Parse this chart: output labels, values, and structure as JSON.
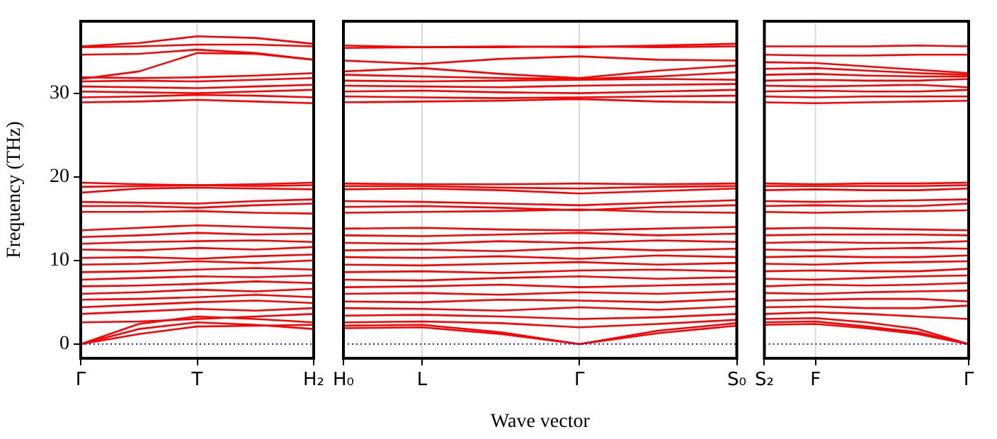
{
  "chart_data": [
    {
      "type": "line",
      "ylabel": "Frequency (THz)",
      "color": "#ff0000",
      "marker": "none",
      "line_style": "solid",
      "tick_labels": "xy",
      "categories": [
        "Γ",
        null,
        "T",
        null,
        "H₂"
      ],
      "ylim": [
        -1.7,
        38.6
      ],
      "yticks": [
        0,
        10,
        20,
        30
      ],
      "ref_lines": [
        {
          "axis": "y",
          "value": 0,
          "color": "#0000ff",
          "line_style": "dotted"
        },
        {
          "axis": "x",
          "value": "T",
          "color": "#d9d9d9",
          "line_style": "solid"
        }
      ],
      "series": [
        {
          "values": [
            0,
            1.2,
            2.1,
            2.2,
            2.3
          ]
        },
        {
          "values": [
            0,
            1.8,
            2.6,
            2.3,
            1.8
          ]
        },
        {
          "values": [
            0,
            2.4,
            3.3,
            3.0,
            2.6
          ]
        },
        {
          "values": [
            2.6,
            2.7,
            3.0,
            3.3,
            3.6
          ]
        },
        {
          "values": [
            3.6,
            3.9,
            4.2,
            4.0,
            4.3
          ]
        },
        {
          "values": [
            4.4,
            4.7,
            5.0,
            5.2,
            4.9
          ]
        },
        {
          "values": [
            5.3,
            5.4,
            5.6,
            5.9,
            5.6
          ]
        },
        {
          "values": [
            6.0,
            6.2,
            6.5,
            6.3,
            6.6
          ]
        },
        {
          "values": [
            6.9,
            7.0,
            7.2,
            7.5,
            7.3
          ]
        },
        {
          "values": [
            7.7,
            7.9,
            8.1,
            8.0,
            8.2
          ]
        },
        {
          "values": [
            8.6,
            8.7,
            8.9,
            9.1,
            8.9
          ]
        },
        {
          "values": [
            9.5,
            9.6,
            9.9,
            9.7,
            10.0
          ]
        },
        {
          "values": [
            10.3,
            10.4,
            10.2,
            10.5,
            10.7
          ]
        },
        {
          "values": [
            11.3,
            11.2,
            11.5,
            11.3,
            11.6
          ]
        },
        {
          "values": [
            12.0,
            12.2,
            12.3,
            12.4,
            12.2
          ]
        },
        {
          "values": [
            12.8,
            13.0,
            13.3,
            13.1,
            13.2
          ]
        },
        {
          "values": [
            13.6,
            13.9,
            14.2,
            14.0,
            13.8
          ]
        },
        {
          "values": [
            15.8,
            15.8,
            15.9,
            15.7,
            15.6
          ]
        },
        {
          "values": [
            16.5,
            16.5,
            16.3,
            16.6,
            16.8
          ]
        },
        {
          "values": [
            17.0,
            16.9,
            16.8,
            17.1,
            17.3
          ]
        },
        {
          "values": [
            18.1,
            18.6,
            18.7,
            18.6,
            18.5
          ]
        },
        {
          "values": [
            18.8,
            18.9,
            19.0,
            18.9,
            19.0
          ]
        },
        {
          "values": [
            19.3,
            19.1,
            19.0,
            19.1,
            19.3
          ]
        },
        {
          "values": [
            28.9,
            29.0,
            29.2,
            29.0,
            28.8
          ]
        },
        {
          "values": [
            29.5,
            29.6,
            29.8,
            29.7,
            29.5
          ]
        },
        {
          "values": [
            30.2,
            30.1,
            30.0,
            30.2,
            30.4
          ]
        },
        {
          "values": [
            30.8,
            30.7,
            30.6,
            30.8,
            31.0
          ]
        },
        {
          "values": [
            31.4,
            31.5,
            31.4,
            31.6,
            31.8
          ]
        },
        {
          "values": [
            31.9,
            31.8,
            31.9,
            32.1,
            32.4
          ]
        },
        {
          "values": [
            31.7,
            32.6,
            34.8,
            34.7,
            34.0
          ]
        },
        {
          "values": [
            34.6,
            34.7,
            35.2,
            34.8,
            34.0
          ]
        },
        {
          "values": [
            35.5,
            35.6,
            35.8,
            35.8,
            35.6
          ]
        },
        {
          "values": [
            35.6,
            36.0,
            36.8,
            36.6,
            35.9
          ]
        }
      ]
    },
    {
      "type": "line",
      "xlabel": "Wave vector",
      "color": "#ff0000",
      "marker": "none",
      "line_style": "solid",
      "grid": "x",
      "tick_labels": "x",
      "categories": [
        "H₀",
        "L",
        null,
        "Γ",
        null,
        "S₀"
      ],
      "ylim": [
        -1.7,
        38.6
      ],
      "yticks": [
        0,
        10,
        20,
        30
      ],
      "ref_lines": [
        {
          "axis": "y",
          "value": 0,
          "color": "#0000ff",
          "line_style": "dotted"
        }
      ],
      "series": [
        {
          "values": [
            1.9,
            2.0,
            1.2,
            0,
            1.3,
            2.2
          ]
        },
        {
          "values": [
            2.2,
            2.3,
            1.4,
            0,
            1.6,
            2.5
          ]
        },
        {
          "values": [
            2.6,
            2.7,
            2.5,
            2.0,
            2.4,
            2.9
          ]
        },
        {
          "values": [
            3.4,
            3.5,
            3.3,
            3.0,
            3.2,
            3.6
          ]
        },
        {
          "values": [
            4.3,
            4.2,
            4.0,
            4.4,
            4.1,
            4.5
          ]
        },
        {
          "values": [
            5.1,
            5.0,
            5.3,
            5.2,
            5.0,
            5.4
          ]
        },
        {
          "values": [
            6.0,
            6.1,
            5.9,
            6.2,
            6.0,
            6.3
          ]
        },
        {
          "values": [
            6.8,
            6.9,
            7.1,
            6.8,
            7.0,
            7.2
          ]
        },
        {
          "values": [
            7.7,
            7.6,
            7.9,
            8.1,
            7.8,
            8.0
          ]
        },
        {
          "values": [
            8.6,
            8.7,
            8.5,
            8.8,
            8.9,
            8.7
          ]
        },
        {
          "values": [
            9.5,
            9.4,
            9.6,
            9.8,
            9.5,
            9.7
          ]
        },
        {
          "values": [
            10.4,
            10.3,
            10.5,
            10.2,
            10.6,
            10.4
          ]
        },
        {
          "values": [
            11.2,
            11.3,
            11.1,
            11.5,
            11.2,
            11.4
          ]
        },
        {
          "values": [
            12.1,
            12.0,
            12.3,
            12.1,
            12.4,
            12.2
          ]
        },
        {
          "values": [
            13.0,
            12.9,
            13.1,
            13.3,
            13.0,
            13.2
          ]
        },
        {
          "values": [
            13.8,
            13.9,
            13.7,
            13.6,
            13.8,
            14.0
          ]
        },
        {
          "values": [
            15.7,
            15.8,
            15.9,
            16.1,
            15.8,
            15.7
          ]
        },
        {
          "values": [
            16.4,
            16.5,
            16.3,
            16.0,
            16.4,
            16.6
          ]
        },
        {
          "values": [
            17.1,
            17.0,
            16.8,
            16.6,
            16.9,
            17.2
          ]
        },
        {
          "values": [
            18.5,
            18.6,
            18.4,
            18.0,
            18.3,
            18.6
          ]
        },
        {
          "values": [
            18.9,
            18.9,
            18.7,
            18.6,
            18.8,
            18.9
          ]
        },
        {
          "values": [
            19.2,
            19.1,
            19.1,
            19.2,
            19.1,
            19.2
          ]
        },
        {
          "values": [
            28.9,
            29.0,
            29.1,
            29.3,
            29.0,
            28.9
          ]
        },
        {
          "values": [
            29.6,
            29.5,
            29.4,
            29.5,
            29.6,
            29.7
          ]
        },
        {
          "values": [
            30.2,
            30.3,
            30.1,
            30.0,
            30.2,
            30.4
          ]
        },
        {
          "values": [
            30.9,
            30.8,
            30.7,
            30.9,
            31.0,
            31.1
          ]
        },
        {
          "values": [
            31.5,
            31.4,
            31.5,
            31.6,
            31.7,
            31.6
          ]
        },
        {
          "values": [
            32.2,
            32.0,
            31.8,
            31.7,
            32.0,
            32.5
          ]
        },
        {
          "values": [
            32.6,
            33.0,
            32.3,
            31.8,
            32.7,
            33.3
          ]
        },
        {
          "values": [
            33.9,
            33.5,
            34.1,
            34.4,
            34.0,
            33.9
          ]
        },
        {
          "values": [
            35.7,
            35.5,
            35.5,
            35.6,
            35.5,
            35.6
          ]
        },
        {
          "values": [
            35.4,
            35.5,
            35.6,
            35.5,
            35.7,
            35.9
          ]
        }
      ]
    },
    {
      "type": "line",
      "color": "#ff0000",
      "marker": "none",
      "line_style": "solid",
      "tick_labels": "x",
      "categories": [
        "S₂",
        "F",
        null,
        null,
        "Γ"
      ],
      "ylim": [
        -1.7,
        38.6
      ],
      "yticks": [
        0,
        10,
        20,
        30
      ],
      "ref_lines": [
        {
          "axis": "y",
          "value": 0,
          "color": "#0000ff",
          "line_style": "dotted"
        },
        {
          "axis": "x",
          "value": "F",
          "color": "#d9d9d9",
          "line_style": "solid"
        }
      ],
      "series": [
        {
          "values": [
            2.3,
            2.4,
            1.9,
            1.2,
            0
          ]
        },
        {
          "values": [
            2.6,
            2.7,
            2.1,
            1.4,
            0
          ]
        },
        {
          "values": [
            3.0,
            3.1,
            2.6,
            1.8,
            0
          ]
        },
        {
          "values": [
            3.6,
            3.8,
            3.6,
            3.3,
            3.0
          ]
        },
        {
          "values": [
            4.4,
            4.5,
            4.3,
            4.3,
            4.6
          ]
        },
        {
          "values": [
            5.2,
            5.3,
            5.4,
            5.4,
            5.1
          ]
        },
        {
          "values": [
            6.1,
            6.0,
            6.2,
            6.3,
            6.4
          ]
        },
        {
          "values": [
            6.9,
            7.1,
            7.0,
            7.1,
            7.3
          ]
        },
        {
          "values": [
            7.8,
            7.7,
            7.9,
            8.1,
            8.2
          ]
        },
        {
          "values": [
            8.7,
            8.8,
            8.7,
            8.7,
            9.0
          ]
        },
        {
          "values": [
            9.6,
            9.5,
            9.7,
            9.8,
            9.9
          ]
        },
        {
          "values": [
            10.4,
            10.5,
            10.4,
            10.4,
            10.6
          ]
        },
        {
          "values": [
            11.3,
            11.2,
            11.4,
            11.5,
            11.4
          ]
        },
        {
          "values": [
            12.1,
            12.2,
            12.1,
            12.1,
            12.3
          ]
        },
        {
          "values": [
            13.0,
            13.1,
            13.1,
            13.1,
            13.0
          ]
        },
        {
          "values": [
            13.8,
            13.9,
            13.8,
            13.7,
            13.6
          ]
        },
        {
          "values": [
            15.8,
            15.7,
            15.8,
            15.9,
            16.0
          ]
        },
        {
          "values": [
            16.5,
            16.6,
            16.5,
            16.5,
            16.8
          ]
        },
        {
          "values": [
            17.1,
            17.0,
            17.1,
            17.2,
            17.3
          ]
        },
        {
          "values": [
            18.4,
            18.5,
            18.4,
            18.4,
            18.6
          ]
        },
        {
          "values": [
            18.9,
            18.9,
            18.9,
            18.9,
            19.0
          ]
        },
        {
          "values": [
            19.2,
            19.1,
            19.2,
            19.2,
            19.3
          ]
        },
        {
          "values": [
            28.9,
            28.8,
            28.9,
            29.0,
            29.1
          ]
        },
        {
          "values": [
            29.6,
            29.5,
            29.6,
            29.6,
            29.6
          ]
        },
        {
          "values": [
            30.2,
            30.3,
            30.2,
            30.2,
            30.4
          ]
        },
        {
          "values": [
            30.9,
            30.8,
            30.9,
            31.0,
            30.7
          ]
        },
        {
          "values": [
            31.5,
            31.6,
            31.5,
            31.5,
            31.7
          ]
        },
        {
          "values": [
            32.2,
            32.3,
            32.1,
            32.0,
            32.0
          ]
        },
        {
          "values": [
            32.9,
            33.0,
            32.7,
            32.4,
            32.2
          ]
        },
        {
          "values": [
            33.7,
            33.6,
            33.2,
            32.8,
            32.4
          ]
        },
        {
          "values": [
            34.6,
            34.5,
            34.5,
            34.6,
            34.6
          ]
        },
        {
          "values": [
            35.6,
            35.6,
            35.6,
            35.7,
            35.6
          ]
        }
      ]
    }
  ]
}
